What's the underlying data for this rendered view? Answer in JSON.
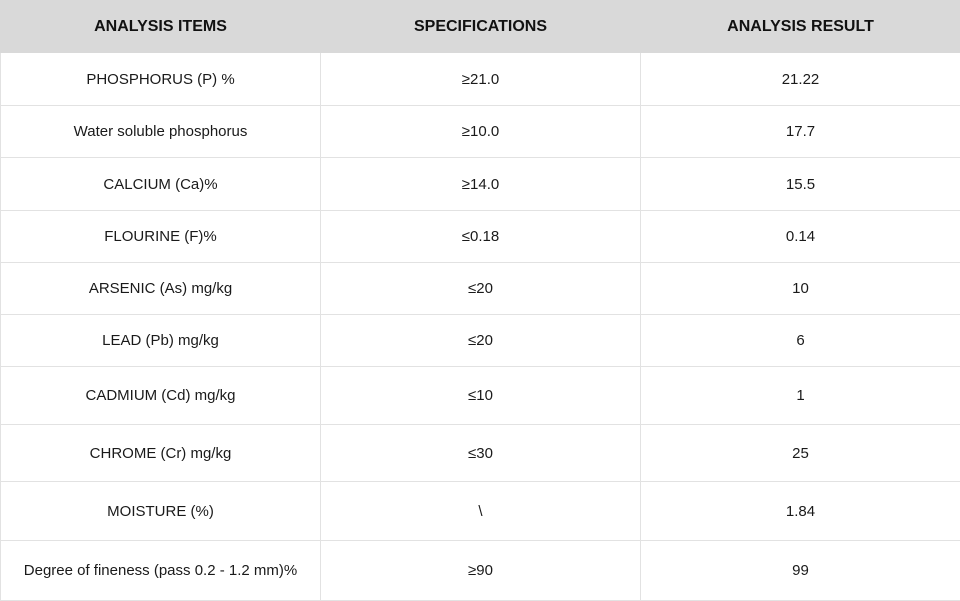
{
  "table": {
    "header": [
      "ANALYSIS ITEMS",
      "SPECIFICATIONS",
      "ANALYSIS RESULT"
    ],
    "rows": [
      [
        "PHOSPHORUS (P) %",
        "≥21.0",
        "21.22"
      ],
      [
        "Water soluble phosphorus",
        "≥10.0",
        "17.7"
      ],
      [
        "CALCIUM (Ca)%",
        "≥14.0",
        "15.5"
      ],
      [
        "FLOURINE (F)%",
        "≤0.18",
        "0.14"
      ],
      [
        "ARSENIC (As) mg/kg",
        "≤20",
        "10"
      ],
      [
        "LEAD (Pb) mg/kg",
        "≤20",
        "6"
      ],
      [
        "CADMIUM (Cd) mg/kg",
        "≤10",
        "1"
      ],
      [
        "CHROME (Cr) mg/kg",
        "≤30",
        "25"
      ],
      [
        "MOISTURE (%)",
        "\\",
        "1.84"
      ],
      [
        "Degree of fineness (pass 0.2 - 1.2 mm)%",
        "≥90",
        "99"
      ]
    ]
  }
}
